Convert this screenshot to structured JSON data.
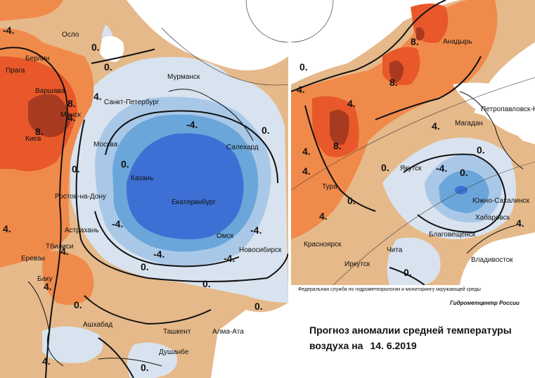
{
  "left_map": {
    "cities": [
      "Осло",
      "Берлин",
      "Прага",
      "Варшава",
      "Минск",
      "Киев",
      "Санкт-Петербург",
      "Мурманск",
      "Москва",
      "Салехард",
      "Казань",
      "Екатеринбург",
      "Ростов-на-Дону",
      "Астрахань",
      "Омск",
      "Новосибирск",
      "Тбилиси",
      "Ереван",
      "Баку",
      "Ашхабад",
      "Ташкент",
      "Алма-Ата",
      "Душанбе"
    ],
    "isotherms": [
      "-4.",
      "0.",
      "0.",
      "4.",
      "4.",
      "8.",
      "8.",
      "4.",
      "-4.",
      "-4.",
      "0.",
      "-4.",
      "-4.",
      "-4.",
      "0.",
      "0.",
      "4.",
      "4.",
      "4.",
      "0.",
      "0.",
      "0.",
      "0.",
      "0."
    ]
  },
  "right_map": {
    "cities": [
      "Анадырь",
      "Петропавловск-Камчатский",
      "Магадан",
      "Якутск",
      "Тура",
      "Южно-Сахалинск",
      "Хабаровск",
      "Благовещенск",
      "Красноярск",
      "Чита",
      "Иркутск",
      "Владивосток"
    ],
    "isotherms": [
      "8.",
      "4.",
      "8.",
      "4.",
      "8.",
      "4.",
      "0.",
      "4.",
      "0.",
      "-4.",
      "0.",
      "4.",
      "0.",
      "0.",
      "4.",
      "4.",
      "0."
    ]
  },
  "footer": {
    "agency": "Федеральная служба по гидрометеорологии и мониторингу окружающей среды",
    "center": "Гидрометцентр России",
    "title_line1": "Прогноз аномалии средней температуры",
    "title_line2": "воздуха на",
    "date": "14. 6.2019"
  },
  "colors": {
    "warm_strong": "#e8582a",
    "warm_mid": "#f08a4b",
    "warm_light": "#e9bd8a",
    "neutral": "#f1d9b3",
    "cool_light": "#d8e3ef",
    "cool_mid": "#a9c8e8",
    "cool_strong": "#6aa6da",
    "cold_core": "#3e6fd4",
    "hot_core": "#a83a1f"
  }
}
